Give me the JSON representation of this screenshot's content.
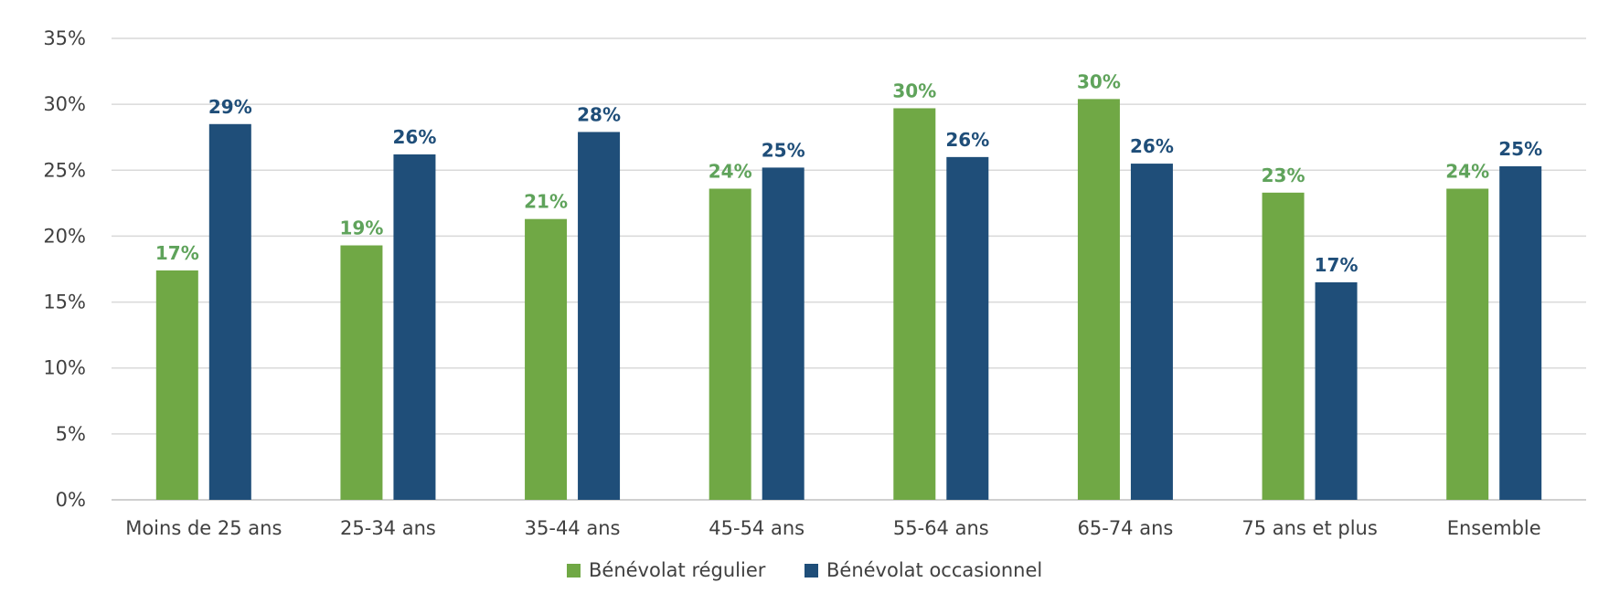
{
  "chart_data": {
    "type": "bar",
    "categories": [
      "Moins de 25 ans",
      "25-34 ans",
      "35-44 ans",
      "45-54 ans",
      "55-64 ans",
      "65-74 ans",
      "75 ans et plus",
      "Ensemble"
    ],
    "series": [
      {
        "name": "Bénévolat régulier",
        "color": "#70a845",
        "values": [
          17.4,
          19.3,
          21.3,
          23.6,
          29.7,
          30.4,
          23.3,
          23.6
        ],
        "labels": [
          "17%",
          "19%",
          "21%",
          "24%",
          "30%",
          "30%",
          "23%",
          "24%"
        ]
      },
      {
        "name": "Bénévolat occasionnel",
        "color": "#1f4e79",
        "values": [
          28.5,
          26.2,
          27.9,
          25.2,
          26.0,
          25.5,
          16.5,
          25.3
        ],
        "labels": [
          "29%",
          "26%",
          "28%",
          "25%",
          "26%",
          "26%",
          "17%",
          "25%"
        ]
      }
    ],
    "ylim": [
      0,
      35
    ],
    "yticks": [
      0,
      5,
      10,
      15,
      20,
      25,
      30,
      35
    ],
    "ytick_labels": [
      "0%",
      "5%",
      "10%",
      "15%",
      "20%",
      "25%",
      "30%",
      "35%"
    ],
    "grid": true,
    "legend_position": "bottom",
    "title": "",
    "xlabel": "",
    "ylabel": ""
  }
}
